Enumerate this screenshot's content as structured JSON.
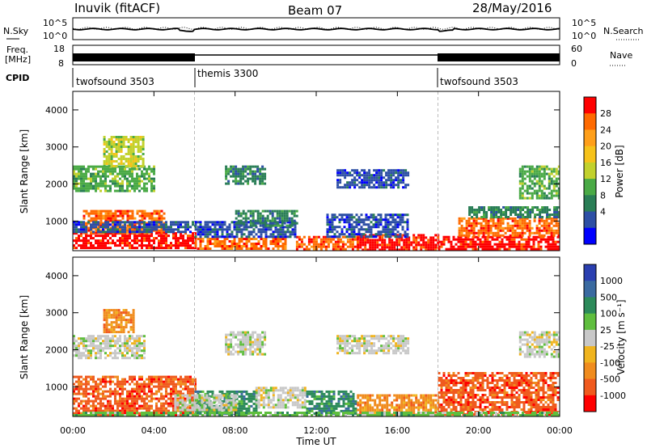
{
  "header": {
    "station": "Inuvik (fitACF)",
    "beam": "Beam 07",
    "date": "28/May/2016"
  },
  "noise_panel": {
    "left_label": "N.Sky",
    "right_label": "N.Search",
    "ticks": [
      "10^5",
      "10^0"
    ]
  },
  "freq_panel": {
    "left_label_1": "Freq.",
    "left_label_2": "[MHz]",
    "left_ticks": [
      "18",
      "8"
    ],
    "right_label": "Nave",
    "right_ticks": [
      "60",
      "0"
    ]
  },
  "cpid_panel": {
    "label": "CPID",
    "segments": [
      {
        "name": "twofsound 3503",
        "start_hour": 0,
        "end_hour": 6
      },
      {
        "name": "themis 3300",
        "start_hour": 6,
        "end_hour": 18
      },
      {
        "name": "twofsound 3503",
        "start_hour": 18,
        "end_hour": 24
      }
    ]
  },
  "colorbars": {
    "power": {
      "label": "Power [dB]",
      "ticks": [
        "28",
        "24",
        "20",
        "16",
        "12",
        "8",
        "4"
      ],
      "colors": [
        "#ff0000",
        "#ff6a00",
        "#ff9f1a",
        "#f6c21a",
        "#c2d12d",
        "#4aaa46",
        "#2a7e56",
        "#2d4fa5",
        "#0000ff"
      ]
    },
    "velocity": {
      "label": "Velocity [m s⁻¹]",
      "ticks": [
        "1000",
        "500",
        "100",
        "25",
        "-25",
        "-100",
        "-500",
        "-1000"
      ],
      "colors": [
        "#2a3fb0",
        "#3a6aa0",
        "#2c8a5a",
        "#5fbe3e",
        "#c8c8c8",
        "#f0b41e",
        "#f08c1e",
        "#f05a1e",
        "#ff0000"
      ]
    }
  },
  "chart_data": [
    {
      "type": "heatmap",
      "title": "Power",
      "xlabel": "Time UT",
      "ylabel": "Slant Range [km]",
      "xticks": [
        "00:00",
        "04:00",
        "08:00",
        "12:00",
        "16:00",
        "20:00",
        "00:00"
      ],
      "yticks": [
        "1000",
        "2000",
        "3000",
        "4000"
      ],
      "ylim": [
        200,
        4500
      ],
      "xlim_hours": [
        0,
        24
      ],
      "regions": [
        {
          "t0": 0.0,
          "t1": 6.0,
          "r0": 250,
          "r1": 700,
          "level": 0
        },
        {
          "t0": 6.0,
          "t1": 10.5,
          "r0": 250,
          "r1": 550,
          "level": 1
        },
        {
          "t0": 11.0,
          "t1": 14.0,
          "r0": 250,
          "r1": 600,
          "level": 1
        },
        {
          "t0": 14.0,
          "t1": 18.0,
          "r0": 250,
          "r1": 650,
          "level": 0
        },
        {
          "t0": 18.0,
          "t1": 24.0,
          "r0": 250,
          "r1": 600,
          "level": 0
        },
        {
          "t0": 0.5,
          "t1": 4.5,
          "r0": 700,
          "r1": 1300,
          "level": 1
        },
        {
          "t0": 0.0,
          "t1": 6.0,
          "r0": 700,
          "r1": 1000,
          "level": 7
        },
        {
          "t0": 6.0,
          "t1": 11.0,
          "r0": 550,
          "r1": 1000,
          "level": 7
        },
        {
          "t0": 8.0,
          "t1": 11.0,
          "r0": 900,
          "r1": 1300,
          "level": 6
        },
        {
          "t0": 12.5,
          "t1": 16.5,
          "r0": 600,
          "r1": 1200,
          "level": 7
        },
        {
          "t0": 19.0,
          "t1": 24.0,
          "r0": 600,
          "r1": 1100,
          "level": 1
        },
        {
          "t0": 19.5,
          "t1": 24.0,
          "r0": 1100,
          "r1": 1400,
          "level": 6
        },
        {
          "t0": 0.0,
          "t1": 4.0,
          "r0": 1800,
          "r1": 2500,
          "level": 5
        },
        {
          "t0": 1.5,
          "t1": 3.5,
          "r0": 2500,
          "r1": 3300,
          "level": 4
        },
        {
          "t0": 7.5,
          "t1": 9.5,
          "r0": 2000,
          "r1": 2500,
          "level": 6
        },
        {
          "t0": 13.0,
          "t1": 16.5,
          "r0": 1900,
          "r1": 2400,
          "level": 7
        },
        {
          "t0": 22.0,
          "t1": 24.0,
          "r0": 1600,
          "r1": 2500,
          "level": 5
        }
      ]
    },
    {
      "type": "heatmap",
      "title": "Velocity",
      "xlabel": "Time UT",
      "ylabel": "Slant Range [km]",
      "xticks": [
        "00:00",
        "04:00",
        "08:00",
        "12:00",
        "16:00",
        "20:00",
        "00:00"
      ],
      "yticks": [
        "1000",
        "2000",
        "3000",
        "4000"
      ],
      "ylim": [
        200,
        4500
      ],
      "xlim_hours": [
        0,
        24
      ],
      "regions": [
        {
          "t0": 0.0,
          "t1": 6.0,
          "r0": 250,
          "r1": 1300,
          "level": 7
        },
        {
          "t0": 6.0,
          "t1": 9.0,
          "r0": 250,
          "r1": 900,
          "level": 2
        },
        {
          "t0": 9.0,
          "t1": 11.5,
          "r0": 450,
          "r1": 1000,
          "level": 4
        },
        {
          "t0": 5.0,
          "t1": 8.0,
          "r0": 400,
          "r1": 800,
          "level": 4
        },
        {
          "t0": 11.5,
          "t1": 14.0,
          "r0": 250,
          "r1": 900,
          "level": 2
        },
        {
          "t0": 14.0,
          "t1": 18.0,
          "r0": 250,
          "r1": 800,
          "level": 6
        },
        {
          "t0": 18.0,
          "t1": 24.0,
          "r0": 250,
          "r1": 1400,
          "level": 7
        },
        {
          "t0": 0.0,
          "t1": 24.0,
          "r0": 200,
          "r1": 330,
          "level": 3
        },
        {
          "t0": 0.0,
          "t1": 3.5,
          "r0": 1800,
          "r1": 2400,
          "level": 4
        },
        {
          "t0": 7.5,
          "t1": 9.5,
          "r0": 1900,
          "r1": 2500,
          "level": 4
        },
        {
          "t0": 13.0,
          "t1": 16.5,
          "r0": 1900,
          "r1": 2400,
          "level": 4
        },
        {
          "t0": 1.5,
          "t1": 3.0,
          "r0": 2500,
          "r1": 3100,
          "level": 6
        },
        {
          "t0": 22.0,
          "t1": 24.0,
          "r0": 1800,
          "r1": 2500,
          "level": 4
        }
      ]
    }
  ]
}
